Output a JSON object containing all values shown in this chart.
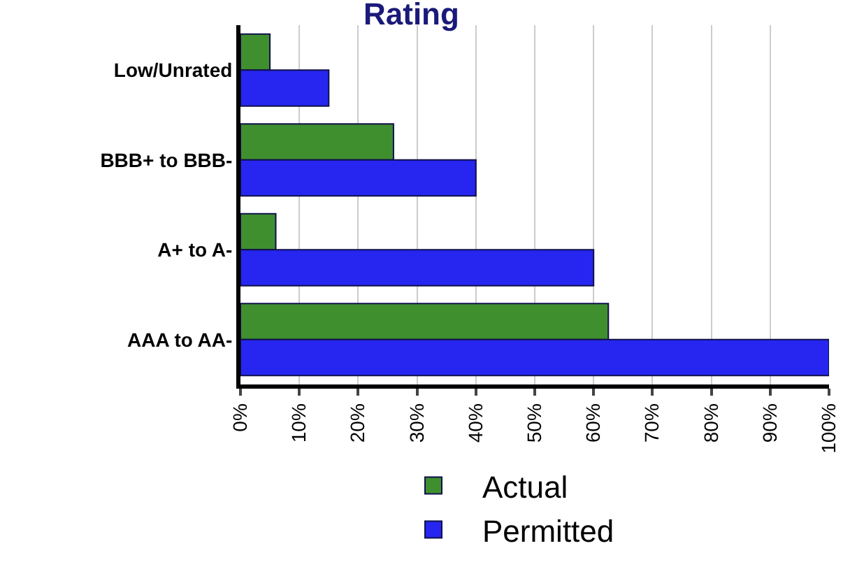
{
  "chart_data": {
    "type": "bar",
    "orientation": "horizontal",
    "title": "Rating",
    "categories": [
      "Low/Unrated",
      "BBB+ to BBB-",
      "A+ to A-",
      "AAA to AA-"
    ],
    "series": [
      {
        "name": "Actual",
        "color": "#3f8f2f",
        "values": [
          5,
          26,
          6,
          62.5
        ]
      },
      {
        "name": "Permitted",
        "color": "#2626f0",
        "values": [
          15,
          40,
          60,
          100
        ]
      }
    ],
    "xlim": [
      0,
      100
    ],
    "xticks": [
      {
        "value": 0,
        "label": "0%"
      },
      {
        "value": 10,
        "label": "10%"
      },
      {
        "value": 20,
        "label": "20%"
      },
      {
        "value": 30,
        "label": "30%"
      },
      {
        "value": 40,
        "label": "40%"
      },
      {
        "value": 50,
        "label": "50%"
      },
      {
        "value": 60,
        "label": "60%"
      },
      {
        "value": 70,
        "label": "70%"
      },
      {
        "value": 80,
        "label": "80%"
      },
      {
        "value": 90,
        "label": "90%"
      },
      {
        "value": 100,
        "label": "100%"
      }
    ],
    "grid": "x",
    "legend": "bottom"
  }
}
